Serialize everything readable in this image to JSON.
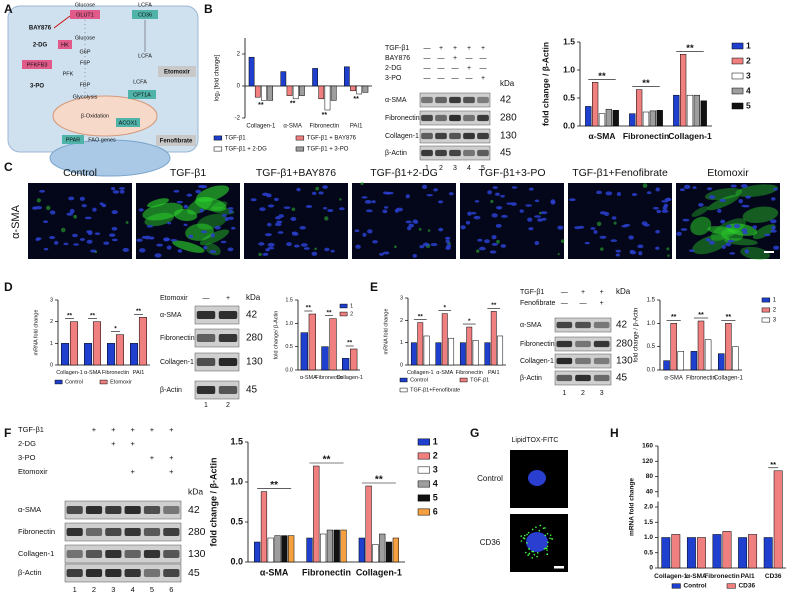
{
  "panel_labels": [
    "A",
    "B",
    "C",
    "D",
    "E",
    "F",
    "G",
    "H"
  ],
  "diagram": {
    "glucose_out": "Glucose",
    "glut1": "GLUT1",
    "bay876": "BAY876",
    "two_dg": "2-DG",
    "hk": "HK",
    "glucose_in": "Glucose",
    "g6p": "G6P",
    "f6p": "F6P",
    "pfkfb3": "PFKFB3",
    "three_po": "3-PO",
    "pfk": "PFK",
    "fbp": "FBP",
    "glycolysis": "Glycolysis",
    "lcfa_out": "LCFA",
    "cd36": "CD36",
    "lcfa_in": "LCFA",
    "lcfa_mito": "LCFA",
    "etomoxir": "Etomoxir",
    "cpt1a": "CPT1A",
    "beta_ox": "β-Oxidation",
    "acox1": "ACOX1",
    "ppar": "PPAR",
    "fao_genes": "FAO genes",
    "fenofibrate": "Fenofibrate"
  },
  "blots": [
    {
      "treatments": [
        {
          "name": "TGF-β1",
          "signs": [
            "—",
            "+",
            "+",
            "+",
            "+"
          ]
        },
        {
          "name": "BAY876",
          "signs": [
            "—",
            "—",
            "+",
            "—",
            "—"
          ]
        },
        {
          "name": "2-DG",
          "signs": [
            "—",
            "—",
            "—",
            "+",
            "—"
          ]
        },
        {
          "name": "3-PO",
          "signs": [
            "—",
            "—",
            "—",
            "—",
            "+"
          ]
        }
      ],
      "unit": "kDa",
      "proteins": [
        {
          "name": "α-SMA",
          "kda": 42
        },
        {
          "name": "Fibronectin",
          "kda": 280
        },
        {
          "name": "Collagen-1",
          "kda": 130
        },
        {
          "name": "β-Actin",
          "kda": 45
        }
      ],
      "lanes": [
        1,
        2,
        3,
        4,
        5
      ]
    },
    {
      "treatments": [
        {
          "name": "Etomoxir",
          "signs": [
            "—",
            "+"
          ]
        }
      ],
      "unit": "kDa",
      "proteins": [
        {
          "name": "α-SMA",
          "kda": 42
        },
        {
          "name": "Fibronectin",
          "kda": 280
        },
        {
          "name": "Collagen-1",
          "kda": 130
        },
        {
          "name": "β-Actin",
          "kda": 45
        }
      ],
      "lanes": [
        1,
        2
      ]
    },
    {
      "treatments": [
        {
          "name": "TGF-β1",
          "signs": [
            "—",
            "+",
            "+"
          ]
        },
        {
          "name": "Fenofibrate",
          "signs": [
            "—",
            "—",
            "+"
          ]
        }
      ],
      "unit": "kDa",
      "proteins": [
        {
          "name": "α-SMA",
          "kda": 42
        },
        {
          "name": "Fibronectin",
          "kda": 280
        },
        {
          "name": "Collagen-1",
          "kda": 130
        },
        {
          "name": "β-Actin",
          "kda": 45
        }
      ],
      "lanes": [
        1,
        2,
        3
      ]
    },
    {
      "treatments": [
        {
          "name": "TGF-β1",
          "signs": [
            null,
            "+",
            "+",
            "+",
            "+",
            "+"
          ]
        },
        {
          "name": "2-DG",
          "signs": [
            null,
            null,
            "+",
            "+",
            null,
            null
          ]
        },
        {
          "name": "3-PO",
          "signs": [
            null,
            null,
            null,
            null,
            "+",
            "+"
          ]
        },
        {
          "name": "Etomoxir",
          "signs": [
            null,
            null,
            null,
            "+",
            null,
            "+"
          ]
        }
      ],
      "unit": "kDa",
      "proteins": [
        {
          "name": "α-SMA",
          "kda": 42
        },
        {
          "name": "Fibronectin",
          "kda": 280
        },
        {
          "name": "Collagen-1",
          "kda": 130
        },
        {
          "name": "β-Actin",
          "kda": 45
        }
      ],
      "lanes": [
        1,
        2,
        3,
        4,
        5,
        6
      ]
    }
  ],
  "microscopy": {
    "stain": "α-SMA",
    "conditions": [
      "Control",
      "TGF-β1",
      "TGF-β1+BAY876",
      "TGF-β1+2-DG",
      "TGF-β1+3-PO",
      "TGF-β1+Fenofibrate",
      "Etomoxir"
    ]
  },
  "lipidtox": {
    "title": "LipidTOX-FITC",
    "rows": [
      "Control",
      "CD36"
    ]
  },
  "chart_data": [
    {
      "type": "bar",
      "y_label": "log₂ [fold change]",
      "categories": [
        "Collagen-1",
        "α-SMA",
        "Fibronectin",
        "PAI1"
      ],
      "series": [
        {
          "name": "TGF-β1",
          "color": "#1f3fcf",
          "values": [
            1.8,
            0.9,
            1.1,
            1.2
          ]
        },
        {
          "name": "TGF-β1 + BAY876",
          "color": "#f08080",
          "values": [
            -0.7,
            -0.6,
            -0.8,
            -0.3
          ]
        },
        {
          "name": "TGF-β1 + 2-DG",
          "color": "#ffffff",
          "values": [
            -0.9,
            -0.8,
            -1.5,
            -0.5
          ]
        },
        {
          "name": "TGF-β1 + 3-PO",
          "color": "#9e9e9e",
          "values": [
            -0.9,
            -0.6,
            -0.9,
            -0.4
          ]
        }
      ],
      "significance": [
        "**",
        "**",
        "**",
        "**"
      ],
      "ylim": [
        -2,
        3
      ],
      "yticks": [
        -2,
        0,
        2
      ],
      "legend": "bottom"
    },
    {
      "type": "bar",
      "y_label": "fold change / β-Actin",
      "categories": [
        "α-SMA",
        "Fibronectin",
        "Collagen-1"
      ],
      "series": [
        {
          "name": "1",
          "color": "#1f3fcf",
          "values": [
            0.35,
            0.22,
            0.55
          ]
        },
        {
          "name": "2",
          "color": "#f08080",
          "values": [
            0.78,
            0.65,
            1.28
          ]
        },
        {
          "name": "3",
          "color": "#ffffff",
          "values": [
            0.22,
            0.25,
            0.55
          ]
        },
        {
          "name": "4",
          "color": "#9e9e9e",
          "values": [
            0.3,
            0.27,
            0.55
          ]
        },
        {
          "name": "5",
          "color": "#111111",
          "values": [
            0.28,
            0.28,
            0.45
          ]
        }
      ],
      "significance": [
        "**",
        "**",
        "**"
      ],
      "ylim": [
        0,
        1.5
      ],
      "yticks": [
        {
          "value": 0,
          "label": "0.0"
        },
        0.5,
        {
          "value": 1,
          "label": "1.0"
        },
        1.5
      ],
      "legend": "right"
    },
    {
      "type": "bar",
      "y_label": "mRNA fold change",
      "categories": [
        "Collagen-1",
        "α-SMA",
        "Fibronectin",
        "PAI1"
      ],
      "series": [
        {
          "name": "Control",
          "color": "#1f3fcf",
          "values": [
            1,
            1,
            1,
            1
          ]
        },
        {
          "name": "Etomoxir",
          "color": "#f08080",
          "values": [
            2.0,
            2.0,
            1.4,
            2.2
          ]
        }
      ],
      "significance": [
        "**",
        "**",
        "*",
        "**"
      ],
      "ylim": [
        0,
        3
      ],
      "yticks": [
        0,
        1,
        2,
        3
      ],
      "legend": "bottom"
    },
    {
      "type": "bar",
      "y_label": "fold change/ β-Actin",
      "categories": [
        "α-SMA",
        "Fibronectin",
        "Collagen-1"
      ],
      "series": [
        {
          "name": "1",
          "color": "#1f3fcf",
          "values": [
            0.8,
            0.5,
            0.25
          ]
        },
        {
          "name": "2",
          "color": "#f08080",
          "values": [
            1.2,
            1.1,
            0.45
          ]
        }
      ],
      "significance": [
        "**",
        "**",
        "**"
      ],
      "ylim": [
        0,
        1.5
      ],
      "yticks": [
        {
          "value": 0,
          "label": "0.0"
        },
        0.5,
        {
          "value": 1,
          "label": "1.0"
        },
        1.5
      ],
      "legend": "right"
    },
    {
      "type": "bar",
      "y_label": "mRNA fold change",
      "categories": [
        "Collagen-1",
        "α-SMA",
        "Fibronectin",
        "PAI1"
      ],
      "series": [
        {
          "name": "Control",
          "color": "#1f3fcf",
          "values": [
            1,
            1,
            1,
            1
          ]
        },
        {
          "name": "TGF-β1",
          "color": "#f08080",
          "values": [
            1.9,
            2.3,
            1.7,
            2.4
          ]
        },
        {
          "name": "TGF-β1+Fenofibrate",
          "color": "#ffffff",
          "values": [
            1.3,
            1.2,
            1.1,
            1.3
          ]
        }
      ],
      "significance": [
        "**",
        "*",
        "*",
        "**"
      ],
      "ylim": [
        0,
        3
      ],
      "yticks": [
        0,
        1,
        2,
        3
      ],
      "legend": "bottom"
    },
    {
      "type": "bar",
      "y_label": "fold change / β-Actin",
      "categories": [
        "α-SMA",
        "Fibronectin",
        "Collagen-1"
      ],
      "series": [
        {
          "name": "1",
          "color": "#1f3fcf",
          "values": [
            0.2,
            0.4,
            0.35
          ]
        },
        {
          "name": "2",
          "color": "#f08080",
          "values": [
            1.0,
            1.05,
            1.0
          ]
        },
        {
          "name": "3",
          "color": "#ffffff",
          "values": [
            0.4,
            0.65,
            0.5
          ]
        }
      ],
      "significance": [
        "**",
        "**",
        "**"
      ],
      "ylim": [
        0,
        1.5
      ],
      "yticks": [
        {
          "value": 0,
          "label": "0.0"
        },
        0.5,
        {
          "value": 1,
          "label": "1.0"
        },
        1.5
      ],
      "legend": "right"
    },
    {
      "type": "bar",
      "y_label": "fold change / β-Actin",
      "categories": [
        "α-SMA",
        "Fibronectin",
        "Collagen-1"
      ],
      "series": [
        {
          "name": "1",
          "color": "#1f3fcf",
          "values": [
            0.25,
            0.3,
            0.3
          ]
        },
        {
          "name": "2",
          "color": "#f08080",
          "values": [
            0.88,
            1.2,
            0.95
          ]
        },
        {
          "name": "3",
          "color": "#ffffff",
          "values": [
            0.3,
            0.35,
            0.22
          ]
        },
        {
          "name": "4",
          "color": "#9e9e9e",
          "values": [
            0.33,
            0.4,
            0.35
          ]
        },
        {
          "name": "5",
          "color": "#111111",
          "values": [
            0.33,
            0.4,
            0.25
          ]
        },
        {
          "name": "6",
          "color": "#f5a040",
          "values": [
            0.33,
            0.4,
            0.3
          ]
        }
      ],
      "significance": [
        "**",
        "**",
        "**"
      ],
      "ylim": [
        0,
        1.5
      ],
      "yticks": [
        {
          "value": 0,
          "label": "0.0"
        },
        0.5,
        {
          "value": 1,
          "label": "1.0"
        },
        1.5
      ],
      "legend": "right"
    },
    {
      "type": "bar",
      "y_label": "mRNA fold change",
      "categories": [
        "Collagen-1",
        "α-SMA",
        "Fibronectin",
        "PAI1",
        "CD36"
      ],
      "series": [
        {
          "name": "Control",
          "color": "#1f3fcf",
          "values": [
            1.0,
            1.0,
            1.1,
            1.0,
            1.0
          ]
        },
        {
          "name": "CD36",
          "color": "#f08080",
          "values": [
            1.1,
            1.0,
            1.2,
            1.1,
            95
          ]
        }
      ],
      "significance": [
        null,
        null,
        null,
        null,
        "**"
      ],
      "broken_axis": true,
      "ylim": [
        0,
        160
      ],
      "yticks": [
        0,
        0.5,
        {
          "value": 1,
          "label": "1.0"
        },
        1.5,
        {
          "value": 2,
          "label": "2.0"
        },
        40,
        80,
        120,
        160
      ],
      "legend": "bottom"
    }
  ]
}
